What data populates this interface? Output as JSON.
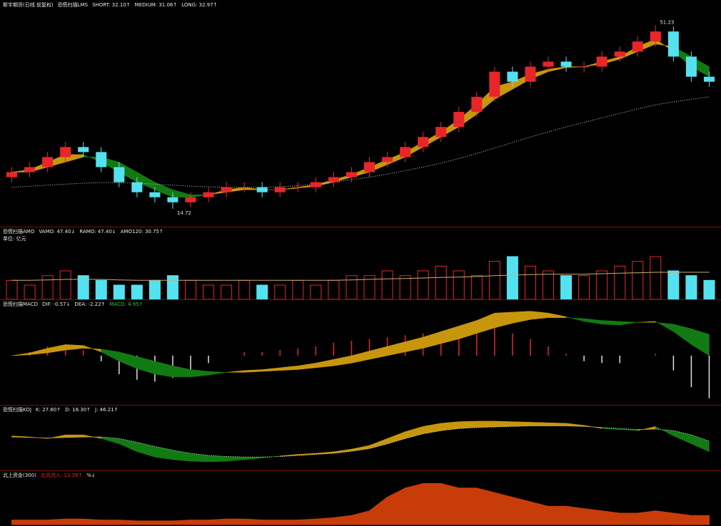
{
  "chart_data": [
    {
      "type": "candlestick",
      "subtitle": "斯宇期货(日线 前复权)",
      "title": "恐慌扫描LMS",
      "header": [
        {
          "text": "SHORT: 32.10↑",
          "color": "#e8e8e8"
        },
        {
          "text": "MEDIUM: 31.06↑",
          "color": "#e8e8e8"
        },
        {
          "text": "LONG: 32.97↑",
          "color": "#e8e8e8"
        }
      ],
      "ylim": [
        12,
        54
      ],
      "up_color": "#e8262a",
      "down_color": "#54e1f0",
      "band_up_color": "#c8960c",
      "band_down_color": "#127a12",
      "ma_color": "#d0d0d0",
      "open": [
        21,
        22,
        23,
        25,
        27,
        26,
        23,
        20,
        18,
        17,
        16,
        17,
        18,
        19,
        19,
        18,
        19,
        19,
        20,
        21,
        22,
        24,
        25,
        27,
        29,
        31,
        34,
        37,
        42,
        40,
        43,
        44,
        43,
        43,
        45,
        46,
        48,
        50,
        45,
        41
      ],
      "close": [
        22,
        23,
        25,
        27,
        26,
        23,
        20,
        18,
        17,
        16,
        17,
        18,
        19,
        19,
        18,
        19,
        19,
        20,
        21,
        22,
        24,
        25,
        27,
        29,
        31,
        34,
        37,
        42,
        40,
        43,
        44,
        43,
        43,
        45,
        46,
        48,
        50,
        45,
        41,
        40
      ],
      "high": [
        23,
        24,
        26,
        28,
        28,
        27,
        24,
        21,
        19,
        18,
        18,
        19,
        20,
        20,
        20,
        20,
        20,
        21,
        22,
        23,
        25,
        26,
        28,
        30,
        32,
        35,
        38,
        43,
        43,
        44,
        45,
        45,
        44,
        46,
        47,
        49,
        51.23,
        51,
        46,
        42
      ],
      "low": [
        20,
        21,
        22,
        24,
        25,
        22,
        19,
        17,
        16,
        14.72,
        15,
        16,
        17,
        18,
        17,
        17,
        18,
        18,
        19,
        20,
        21,
        23,
        24,
        26,
        28,
        30,
        33,
        36,
        39,
        39,
        42,
        42,
        42,
        42,
        44,
        45,
        47,
        44,
        40,
        39
      ],
      "fast": [
        22,
        22.5,
        24,
        25.5,
        25.5,
        24,
        22,
        20,
        18.5,
        17,
        17,
        17.5,
        18.5,
        19,
        18.5,
        18.5,
        19,
        19.5,
        20.5,
        21.5,
        23,
        24.5,
        26,
        28,
        30,
        32.5,
        35.5,
        39,
        40,
        41.5,
        42.5,
        43,
        43,
        44,
        45,
        47,
        48.5,
        46,
        43,
        41
      ],
      "slow": [
        22,
        22,
        23,
        24,
        25,
        25,
        24,
        22,
        20,
        18.5,
        17.5,
        17.5,
        18,
        18.5,
        18.5,
        18.5,
        18.8,
        19.2,
        20,
        21,
        22,
        23.5,
        25,
        27,
        29,
        31,
        33.5,
        36.5,
        38.5,
        40.5,
        42,
        42.8,
        43,
        43.5,
        44.5,
        46,
        47.5,
        47,
        45,
        43
      ],
      "ma": [
        19,
        19.2,
        19.4,
        19.6,
        19.8,
        19.9,
        19.9,
        19.8,
        19.6,
        19.4,
        19.2,
        19.1,
        19,
        19,
        19,
        19.1,
        19.3,
        19.6,
        20,
        20.5,
        21,
        21.6,
        22.3,
        23,
        23.8,
        24.7,
        25.7,
        26.8,
        27.9,
        29,
        30,
        31,
        31.9,
        32.8,
        33.7,
        34.6,
        35.4,
        36,
        36.5,
        37
      ],
      "high_label_index": 36,
      "low_label_index": 9
    },
    {
      "type": "bar",
      "title": "恐慌扫描AMO",
      "unit": "单位: 亿元",
      "header": [
        {
          "text": "VAMO: 47.40↓",
          "color": "#e8e8e8"
        },
        {
          "text": "RAMO: 47.40↓",
          "color": "#e8e8e8"
        },
        {
          "text": "AMO120: 30.75↑",
          "color": "#e8e8e8"
        }
      ],
      "ylim": [
        0,
        12
      ],
      "up_color": "#e8262a",
      "down_color": "#54e1f0",
      "line_color": "#c8b070",
      "values": [
        4,
        3,
        5,
        6,
        5,
        4,
        3,
        3,
        4,
        5,
        4,
        3,
        3,
        4,
        3,
        3,
        4,
        3,
        4,
        5,
        5,
        6,
        5,
        6,
        7,
        6,
        5,
        8,
        9,
        7,
        6,
        5,
        5,
        6,
        7,
        8,
        9,
        6,
        5,
        4
      ],
      "avg": [
        4,
        4,
        4.1,
        4.2,
        4.2,
        4.2,
        4.1,
        4,
        4,
        4,
        4,
        4,
        4,
        4,
        4,
        4,
        4,
        4,
        4,
        4.1,
        4.2,
        4.3,
        4.4,
        4.5,
        4.6,
        4.7,
        4.8,
        5,
        5.1,
        5.2,
        5.3,
        5.3,
        5.3,
        5.4,
        5.5,
        5.6,
        5.7,
        5.7,
        5.7,
        5.7
      ]
    },
    {
      "type": "macd",
      "title": "恐慌扫描MACD",
      "header": [
        {
          "text": "DIF: -0.57↓",
          "color": "#e8e8e8"
        },
        {
          "text": "DEA: -2.22↑",
          "color": "#e8e8e8"
        },
        {
          "text": "MACD: 4.95↑",
          "color": "#32c832"
        }
      ],
      "ylim": [
        -5,
        5
      ],
      "band_up_color": "#c8960c",
      "band_down_color": "#127a12",
      "pos_color": "#e8262a",
      "neg_color": "#e0e0e0",
      "dif": [
        0,
        0.3,
        0.8,
        1.2,
        1.1,
        0.4,
        -0.6,
        -1.4,
        -2,
        -2.3,
        -2.3,
        -2.1,
        -1.8,
        -1.6,
        -1.5,
        -1.3,
        -1.1,
        -0.8,
        -0.4,
        0,
        0.5,
        1,
        1.5,
        2,
        2.6,
        3.2,
        3.8,
        4.6,
        4.7,
        4.8,
        4.6,
        4.2,
        3.7,
        3.4,
        3.3,
        3.6,
        3.7,
        2.6,
        1.2,
        0
      ],
      "dea": [
        0,
        0.1,
        0.3,
        0.6,
        0.8,
        0.7,
        0.4,
        -0.1,
        -0.6,
        -1.1,
        -1.5,
        -1.7,
        -1.8,
        -1.8,
        -1.7,
        -1.6,
        -1.5,
        -1.3,
        -1.1,
        -0.8,
        -0.4,
        0,
        0.4,
        0.8,
        1.3,
        1.8,
        2.4,
        3,
        3.5,
        3.9,
        4.1,
        4.1,
        4,
        3.8,
        3.7,
        3.6,
        3.6,
        3.4,
        2.9,
        2.3
      ],
      "hist": [
        0,
        0.4,
        1,
        1.2,
        0.6,
        -0.6,
        -2,
        -2.6,
        -2.8,
        -2.4,
        -1.6,
        -0.8,
        0,
        0.4,
        0.4,
        0.6,
        0.8,
        1,
        1.4,
        1.6,
        1.8,
        2,
        2.2,
        2.4,
        2.6,
        2.8,
        2.8,
        3.2,
        2.4,
        1.8,
        1,
        0.2,
        -0.6,
        -0.8,
        -0.8,
        0,
        0.2,
        -1.6,
        -3.4,
        -4.6
      ]
    },
    {
      "type": "kdj",
      "title": "恐慌扫描KDJ",
      "header": [
        {
          "text": "K: 27.60↑",
          "color": "#e8e8e8"
        },
        {
          "text": "D: 18.30↑",
          "color": "#e8e8e8"
        },
        {
          "text": "J: 46.21↑",
          "color": "#e8e8e8"
        }
      ],
      "ylim": [
        0,
        100
      ],
      "band_up_color": "#c8960c",
      "band_down_color": "#127a12",
      "line_color": "#d0d0d0",
      "k": [
        60,
        58,
        55,
        62,
        62,
        55,
        45,
        30,
        20,
        15,
        12,
        11,
        12,
        15,
        18,
        22,
        25,
        27,
        30,
        35,
        42,
        55,
        68,
        78,
        84,
        87,
        88,
        88,
        87,
        86,
        85,
        84,
        80,
        74,
        72,
        70,
        78,
        60,
        45,
        30
      ],
      "d": [
        58,
        57,
        56,
        57,
        58,
        58,
        55,
        48,
        40,
        33,
        27,
        23,
        21,
        20,
        20,
        21,
        23,
        25,
        27,
        31,
        36,
        45,
        55,
        64,
        70,
        74,
        76,
        77,
        78,
        79,
        79,
        79,
        78,
        76,
        74,
        72,
        73,
        70,
        62,
        50
      ]
    },
    {
      "type": "area",
      "title": "北上资金(300)",
      "header": [
        {
          "text": "北向流入: 13.39↑",
          "color": "#e8262a"
        },
        {
          "text": "%↓",
          "color": "#e8e8e8"
        }
      ],
      "ylim": [
        0,
        10
      ],
      "color": "#c83c0a",
      "values": [
        1,
        1,
        1,
        1.2,
        1.2,
        1,
        1,
        0.8,
        0.8,
        0.8,
        1,
        1,
        1.2,
        1.2,
        1,
        1,
        1,
        1.2,
        1.5,
        2,
        3,
        6,
        8,
        9,
        9,
        8,
        8,
        7,
        6,
        5,
        4,
        4,
        3.5,
        3,
        2.5,
        2.5,
        3,
        2.5,
        2,
        2
      ]
    }
  ]
}
